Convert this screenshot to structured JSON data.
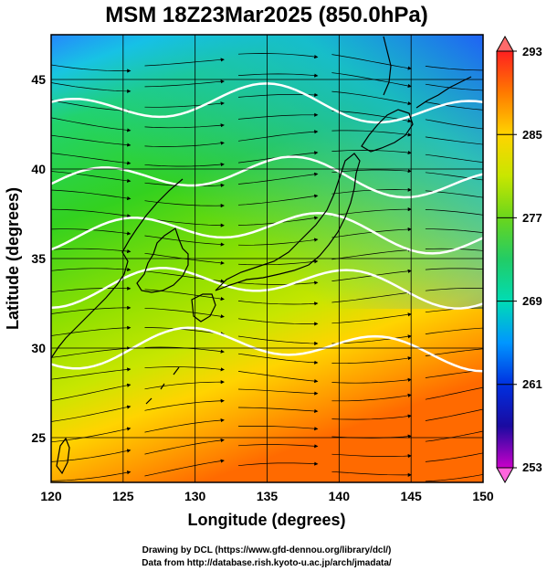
{
  "title": "MSM 18Z23Mar2025 (850.0hPa)",
  "xlabel": "Longitude (degrees)",
  "ylabel": "Latitude  (degrees)",
  "xticks": [
    "120",
    "125",
    "130",
    "135",
    "140",
    "145",
    "150"
  ],
  "yticks": [
    "25",
    "30",
    "35",
    "40",
    "45"
  ],
  "colorbar": {
    "labels": [
      "293",
      "285",
      "277",
      "269",
      "261",
      "253"
    ],
    "colors": [
      "#ff2020",
      "#ffae00",
      "#c8e600",
      "#33d11f",
      "#00dcb4",
      "#0096ff",
      "#0030e0",
      "#1a0aa0",
      "#c900c9",
      "#ff33cc"
    ]
  },
  "credits": {
    "line1": "Drawing by DCL (https://www.gfd-dennou.org/library/dcl/)",
    "line2": "Data from http://database.rish.kyoto-u.ac.jp/arch/jmadata/"
  },
  "chart_data": {
    "type": "heatmap",
    "variable": "temperature with streamlines",
    "units": "K",
    "xlim": [
      120,
      150
    ],
    "ylim": [
      22.5,
      47.5
    ],
    "clim": [
      253,
      293
    ],
    "grid": true,
    "contours_white": [
      30,
      33.5,
      36.5,
      39.5,
      43.5
    ]
  }
}
